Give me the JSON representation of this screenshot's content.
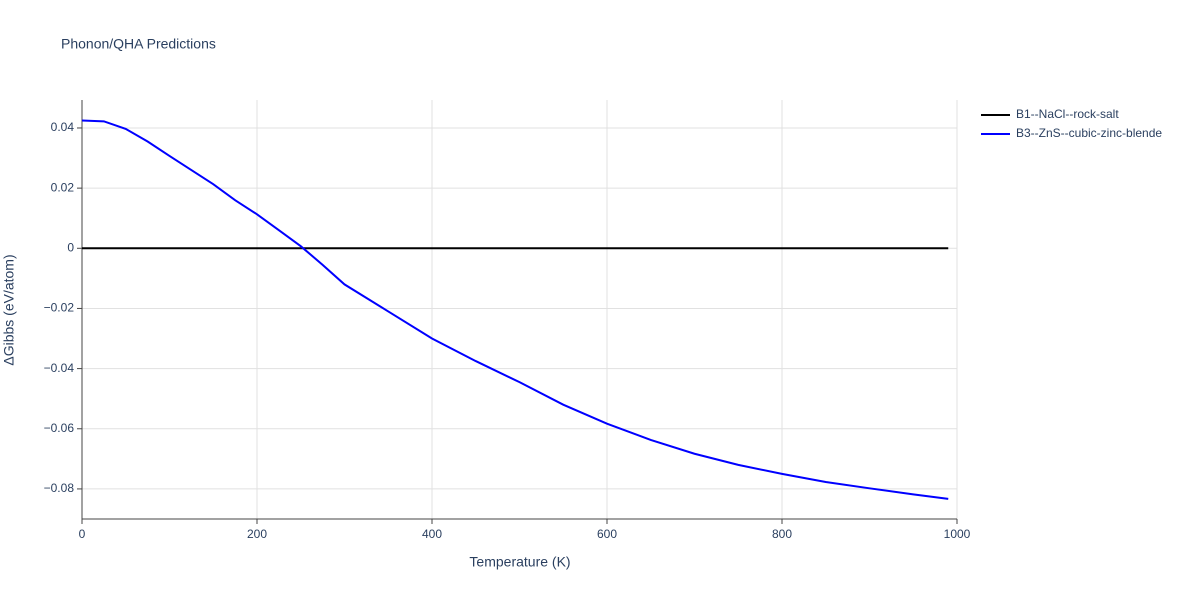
{
  "chart_data": {
    "type": "line",
    "title": "Phonon/QHA Predictions",
    "xlabel": "Temperature (K)",
    "ylabel": "ΔGibbs (eV/atom)",
    "xlim": [
      0,
      1000
    ],
    "xticks": [
      0,
      200,
      400,
      600,
      800,
      1000
    ],
    "ylim": [
      -0.09,
      0.0493
    ],
    "yticks": [
      {
        "value": -0.08,
        "label": "−0.08"
      },
      {
        "value": -0.06,
        "label": "−0.06"
      },
      {
        "value": -0.04,
        "label": "−0.04"
      },
      {
        "value": -0.02,
        "label": "−0.02"
      },
      0,
      0.02,
      0.04
    ],
    "grid": true,
    "legend": "outside-right",
    "series": [
      {
        "name": "B1--NaCl--rock-salt",
        "color": "#000000",
        "x": [
          0,
          990
        ],
        "values": [
          0,
          0
        ]
      },
      {
        "name": "B3--ZnS--cubic-zinc-blende",
        "color": "#0000ff",
        "x": [
          0,
          25,
          50,
          75,
          100,
          125,
          150,
          175,
          200,
          225,
          250,
          275,
          300,
          350,
          400,
          450,
          500,
          550,
          600,
          650,
          700,
          750,
          800,
          850,
          900,
          950,
          990
        ],
        "values": [
          0.0425,
          0.0422,
          0.0397,
          0.0355,
          0.0307,
          0.026,
          0.0213,
          0.016,
          0.0113,
          0.006,
          0.0007,
          -0.0055,
          -0.012,
          -0.021,
          -0.03,
          -0.0375,
          -0.0445,
          -0.052,
          -0.0583,
          -0.0637,
          -0.0683,
          -0.072,
          -0.075,
          -0.0777,
          -0.0798,
          -0.0818,
          -0.0833
        ]
      }
    ]
  }
}
